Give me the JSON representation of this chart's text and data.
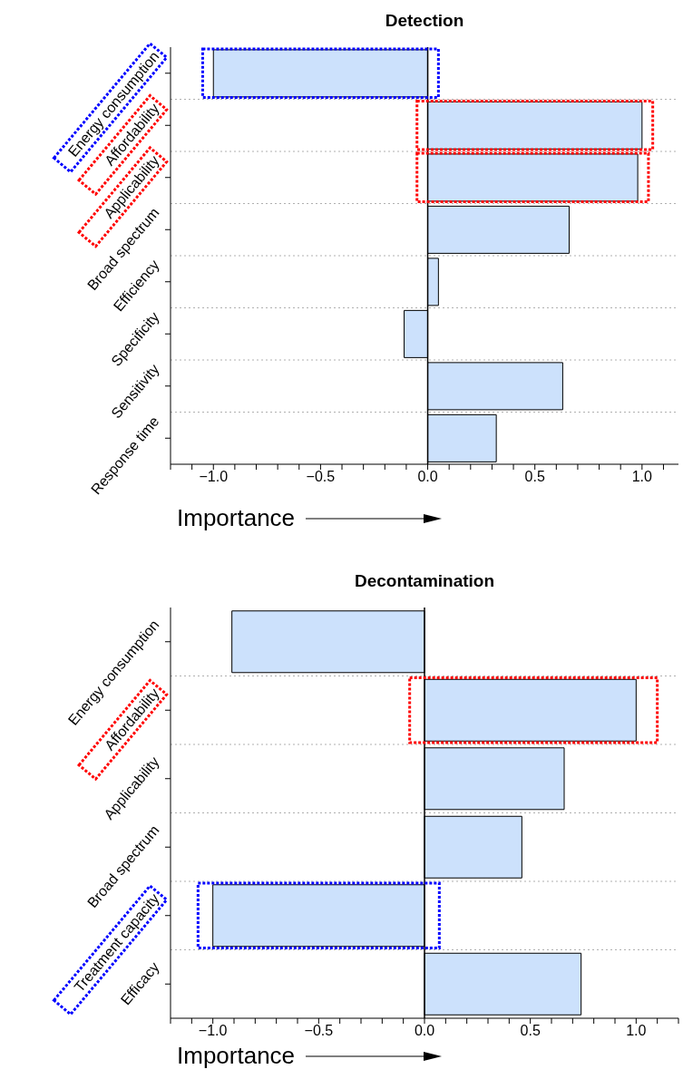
{
  "chart_data": [
    {
      "type": "bar",
      "orientation": "horizontal",
      "title": "Detection",
      "xlabel": "Importance",
      "categories": [
        "Energy consumption",
        "Affordability",
        "Applicability",
        "Broad spectrum",
        "Efficiency",
        "Specificity",
        "Sensitivity",
        "Response time"
      ],
      "values": [
        -1.0,
        1.0,
        0.98,
        0.66,
        0.05,
        -0.11,
        0.63,
        0.32
      ],
      "color": "#cce1fc",
      "xlim": [
        -1.2,
        1.17
      ],
      "xticks": [
        {
          "value": -1.2,
          "label": null
        },
        {
          "value": -1.1,
          "label": null
        },
        {
          "value": -1.0,
          "label": "−1.0"
        },
        {
          "value": -0.9,
          "label": null
        },
        {
          "value": -0.8,
          "label": null
        },
        {
          "value": -0.7,
          "label": null
        },
        {
          "value": -0.6,
          "label": null
        },
        {
          "value": -0.5,
          "label": "−0.5"
        },
        {
          "value": -0.4,
          "label": null
        },
        {
          "value": -0.3,
          "label": null
        },
        {
          "value": -0.2,
          "label": null
        },
        {
          "value": -0.1,
          "label": null
        },
        {
          "value": 0,
          "label": "0.0"
        },
        {
          "value": 0.1,
          "label": null
        },
        {
          "value": 0.2,
          "label": null
        },
        {
          "value": 0.3,
          "label": null
        },
        {
          "value": 0.4,
          "label": null
        },
        {
          "value": 0.5,
          "label": "0.5"
        },
        {
          "value": 0.6,
          "label": null
        },
        {
          "value": 0.7,
          "label": null
        },
        {
          "value": 0.8,
          "label": null
        },
        {
          "value": 0.9,
          "label": null
        },
        {
          "value": 1.0,
          "label": "1.0"
        },
        {
          "value": 1.1,
          "label": null
        }
      ],
      "ref_lines": [
        {
          "axis": "x",
          "value": 0,
          "color": "#000000"
        }
      ],
      "grid": "y",
      "legend": false
    },
    {
      "type": "bar",
      "orientation": "horizontal",
      "title": "Decontamination",
      "xlabel": "Importance",
      "categories": [
        "Energy consumption",
        "Affordability",
        "Applicability",
        "Broad spectrum",
        "Treatment capacity",
        "Efficacy"
      ],
      "values": [
        -0.91,
        1.0,
        0.66,
        0.46,
        -1.0,
        0.74
      ],
      "color": "#cce1fc",
      "xlim": [
        -1.2,
        1.2
      ],
      "xticks": [
        {
          "value": -1.2,
          "label": null
        },
        {
          "value": -1.1,
          "label": null
        },
        {
          "value": -1.0,
          "label": "−1.0"
        },
        {
          "value": -0.9,
          "label": null
        },
        {
          "value": -0.8,
          "label": null
        },
        {
          "value": -0.7,
          "label": null
        },
        {
          "value": -0.6,
          "label": null
        },
        {
          "value": -0.5,
          "label": "−0.5"
        },
        {
          "value": -0.4,
          "label": null
        },
        {
          "value": -0.3,
          "label": null
        },
        {
          "value": -0.2,
          "label": null
        },
        {
          "value": -0.1,
          "label": null
        },
        {
          "value": 0,
          "label": "0.0"
        },
        {
          "value": 0.1,
          "label": null
        },
        {
          "value": 0.2,
          "label": null
        },
        {
          "value": 0.3,
          "label": null
        },
        {
          "value": 0.4,
          "label": null
        },
        {
          "value": 0.5,
          "label": "0.5"
        },
        {
          "value": 0.6,
          "label": null
        },
        {
          "value": 0.7,
          "label": null
        },
        {
          "value": 0.8,
          "label": null
        },
        {
          "value": 0.9,
          "label": null
        },
        {
          "value": 1.0,
          "label": "1.0"
        },
        {
          "value": 1.1,
          "label": null
        },
        {
          "value": 1.2,
          "label": null
        }
      ],
      "ref_lines": [
        {
          "axis": "x",
          "value": 0,
          "color": "#000000"
        }
      ],
      "grid": "y",
      "legend": false
    }
  ]
}
